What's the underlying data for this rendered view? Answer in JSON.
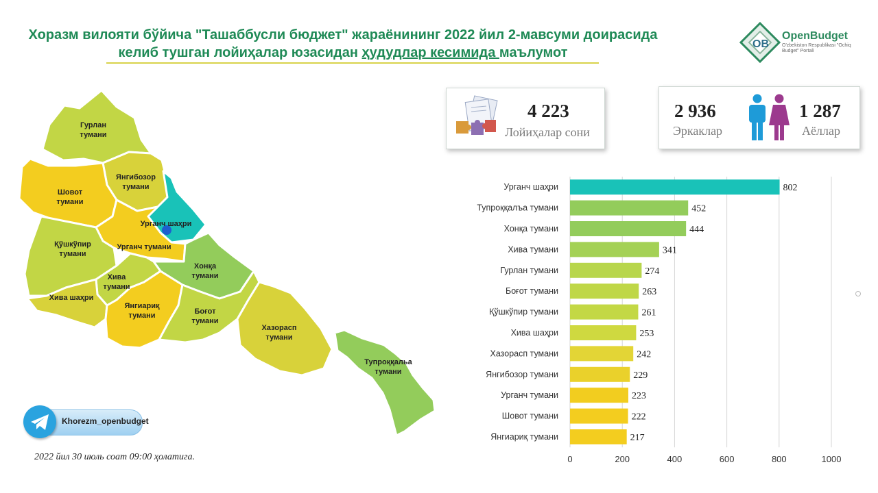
{
  "header": {
    "title_line1": "Хоразм вилояти бўйича \"Ташаббусли бюджет\" жараёнининг 2022 йил 2-мавсуми доирасида",
    "title_line2_a": "келиб тушган лойиҳалар юзасидан ",
    "title_line2_u": "ҳудудлар кесимида ",
    "title_line2_b": "маълумот"
  },
  "logo": {
    "name": "OpenBudget",
    "subtitle": "O'zbekiston Respublikasi \"Ochiq Budget\" Portali",
    "mark": "OB"
  },
  "stats": {
    "projects": {
      "value": "4 223",
      "label": "Лойиҳалар сони"
    },
    "men": {
      "value": "2 936",
      "label": "Эркаклар"
    },
    "women": {
      "value": "1 287",
      "label": "Аёллар"
    }
  },
  "map_labels": {
    "gurlan": "Гурлан\nтумани",
    "yangibozor": "Янгибозор\nтумани",
    "shovot": "Шовот\nтумани",
    "urganch_city": "Урганч шаҳри",
    "urganch": "Урганч тумани",
    "qushkupir": "Қўшкўпир\nтумани",
    "khonka": "Хонқа\nтумани",
    "khiva": "Хива\nтумани",
    "khiva_city": "Хива шаҳри",
    "yangiarik": "Янгиариқ\nтумани",
    "bogot": "Боғот\nтумани",
    "khazorasp": "Хазорасп\nтумани",
    "tuprokkala": "Тупроққальа\nтумани"
  },
  "telegram": {
    "handle": "Khorezm_openbudget"
  },
  "footnote": "2022 йил 30 июль соат 09:00 ҳолатига.",
  "colors": {
    "highlight": "#19c2b8",
    "green": "#93cc5b",
    "yellowgreen": "#c2d645",
    "yellow": "#f3cd1f",
    "title": "#1f8a56"
  },
  "chart_data": {
    "type": "bar",
    "orientation": "horizontal",
    "categories": [
      "Урганч шаҳри",
      "Тупроққалъа тумани",
      "Хонқа тумани",
      "Хива тумани",
      "Гурлан тумани",
      "Боғот тумани",
      "Қўшкўпир тумани",
      "Хива шаҳри",
      "Хазорасп тумани",
      "Янгибозор тумани",
      "Урганч тумани",
      "Шовот тумани",
      "Янгиариқ тумани"
    ],
    "values": [
      802,
      452,
      444,
      341,
      274,
      263,
      261,
      253,
      242,
      229,
      223,
      222,
      217
    ],
    "bar_colors": [
      "#19c2b8",
      "#93cc5b",
      "#93cc5b",
      "#a4d155",
      "#b8d64c",
      "#bfd747",
      "#c3d845",
      "#cfd940",
      "#e3d536",
      "#ead12b",
      "#f2cd1f",
      "#f3cd1f",
      "#f3cd1f"
    ],
    "xlim": [
      0,
      1000
    ],
    "xticks": [
      0,
      200,
      400,
      600,
      800,
      1000
    ],
    "grid": true,
    "title": "",
    "xlabel": "",
    "ylabel": ""
  }
}
